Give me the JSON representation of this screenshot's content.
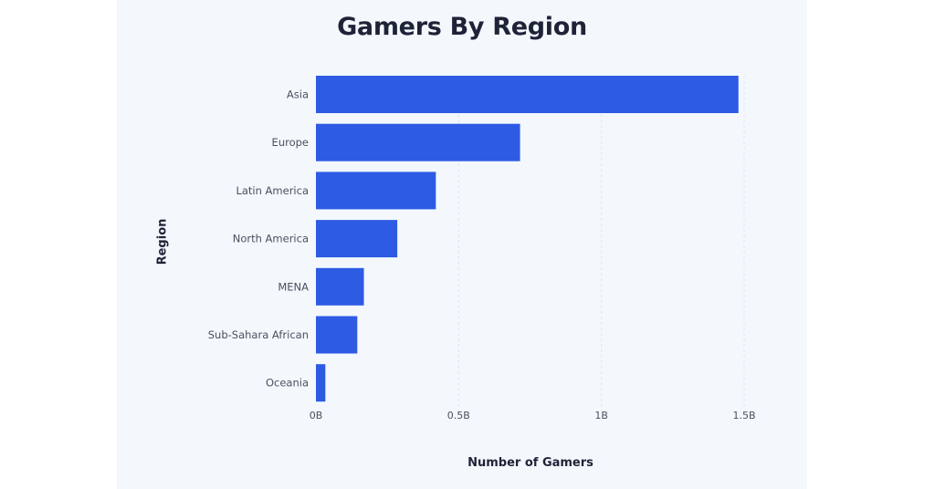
{
  "chart_data": {
    "type": "bar",
    "orientation": "horizontal",
    "title": "Gamers By Region",
    "xlabel": "Number of Gamers",
    "ylabel": "Region",
    "categories": [
      "Asia",
      "Europe",
      "Latin America",
      "North America",
      "MENA",
      "Sub-Sahara African",
      "Oceania"
    ],
    "values": [
      1.48,
      0.715,
      0.42,
      0.285,
      0.168,
      0.145,
      0.033
    ],
    "xlim": [
      0,
      1.5
    ],
    "xticks": [
      0,
      0.5,
      1,
      1.5
    ],
    "xtick_labels": [
      "0B",
      "0.5B",
      "1B",
      "1.5B"
    ],
    "grid": "vertical-dashed",
    "colors": {
      "bar": "#2d5be3",
      "text": "#1f2337",
      "tick": "#4a4f5e",
      "grid": "#dfe5ee",
      "background": "#f4f8fd"
    }
  }
}
